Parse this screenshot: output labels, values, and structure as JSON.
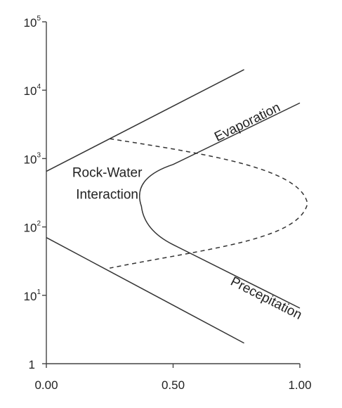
{
  "chart_data": {
    "type": "line",
    "title": "",
    "xlabel": "",
    "ylabel": "",
    "x_scale": "linear",
    "y_scale": "log",
    "xlim": [
      0,
      1
    ],
    "ylim": [
      1,
      100000
    ],
    "grid": false,
    "legend": "none",
    "x_ticks": [
      {
        "value": 0,
        "label": "0.00"
      },
      {
        "value": 0.5,
        "label": "0.50"
      },
      {
        "value": 1,
        "label": "1.00"
      }
    ],
    "y_ticks": [
      {
        "value": 1,
        "base": "1",
        "exp": ""
      },
      {
        "value": 10,
        "base": "10",
        "exp": "1"
      },
      {
        "value": 100,
        "base": "10",
        "exp": "2"
      },
      {
        "value": 1000,
        "base": "10",
        "exp": "3"
      },
      {
        "value": 10000,
        "base": "10",
        "exp": "4"
      },
      {
        "value": 100000,
        "base": "10",
        "exp": "5"
      }
    ],
    "series": [
      {
        "style": "solid",
        "color": "#333333",
        "points": [
          [
            0,
            650
          ],
          [
            0.78,
            20000
          ]
        ]
      },
      {
        "style": "solid",
        "color": "#333333",
        "points": [
          [
            0,
            70
          ],
          [
            0.78,
            2
          ]
        ]
      },
      {
        "style": "solid",
        "color": "#333333",
        "curve": "boomerang",
        "points": [
          [
            1.0,
            6500
          ],
          [
            0.5,
            820
          ],
          [
            0.375,
            200
          ],
          [
            0.5,
            55
          ],
          [
            1.0,
            6.5
          ]
        ]
      },
      {
        "style": "dashed",
        "color": "#333333",
        "curve": "boomerang",
        "points": [
          [
            0.25,
            1950
          ],
          [
            1.03,
            220
          ],
          [
            0.25,
            25
          ]
        ]
      }
    ],
    "annotations": [
      {
        "text": "Evaporation",
        "x": 0.8,
        "y": 3000,
        "rotation": -26
      },
      {
        "text": "Rock-Water",
        "x": 0.24,
        "y": 540,
        "rotation": 0
      },
      {
        "text": "Interaction",
        "x": 0.24,
        "y": 260,
        "rotation": 0
      },
      {
        "text": "Precepitation",
        "x": 0.86,
        "y": 8,
        "rotation": 27
      }
    ]
  }
}
